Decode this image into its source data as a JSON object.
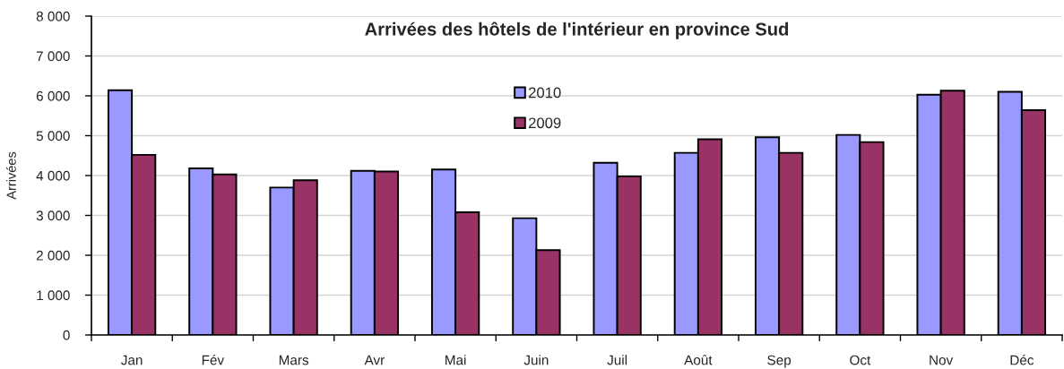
{
  "chart_data": {
    "type": "bar",
    "title": "Arrivées des hôtels de l'intérieur en province Sud",
    "ylabel": "Arrivées",
    "categories": [
      "Jan",
      "Fév",
      "Mars",
      "Avr",
      "Mai",
      "Juin",
      "Juil",
      "Août",
      "Sep",
      "Oct",
      "Nov",
      "Déc"
    ],
    "series": [
      {
        "name": "2010",
        "color": "#9999ff",
        "values": [
          6140,
          4180,
          3700,
          4120,
          4150,
          2930,
          4320,
          4570,
          4960,
          5020,
          6030,
          6100
        ]
      },
      {
        "name": "2009",
        "color": "#993366",
        "values": [
          4520,
          4030,
          3880,
          4100,
          3080,
          2130,
          3980,
          4910,
          4570,
          4840,
          6130,
          5640
        ]
      }
    ],
    "ylim": [
      0,
      8000
    ],
    "yticks": [
      0,
      {
        "value": 1000,
        "label": "1 000"
      },
      {
        "value": 2000,
        "label": "2 000"
      },
      {
        "value": 3000,
        "label": "3 000"
      },
      {
        "value": 4000,
        "label": "4 000"
      },
      {
        "value": 5000,
        "label": "5 000"
      },
      {
        "value": 6000,
        "label": "6 000"
      },
      {
        "value": 7000,
        "label": "7 000"
      },
      {
        "value": 8000,
        "label": "8 000"
      }
    ],
    "grid": "y",
    "legend": "top"
  }
}
